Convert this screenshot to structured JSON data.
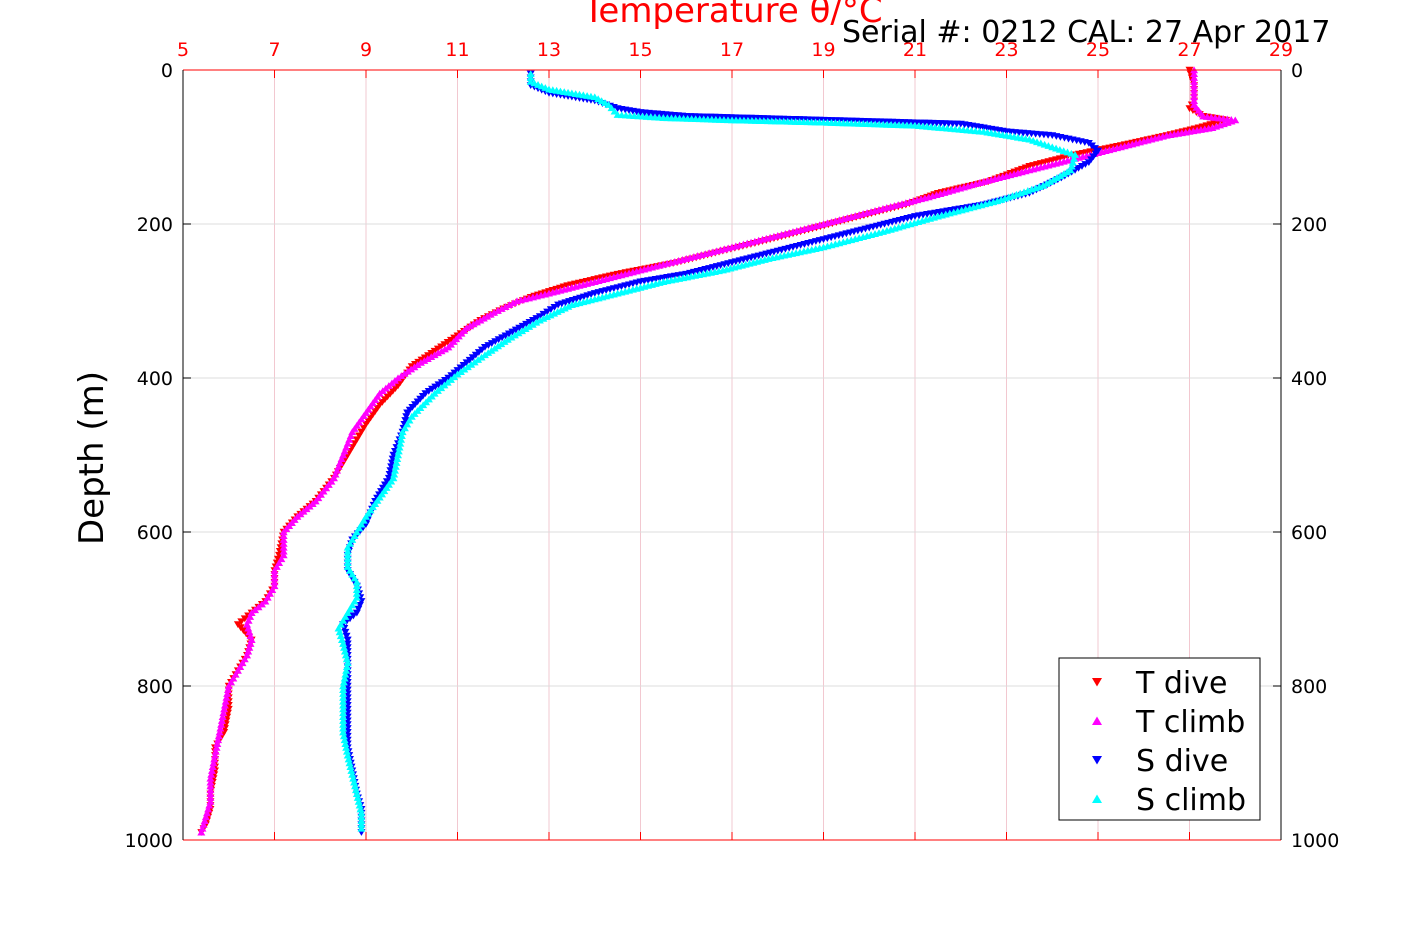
{
  "chart_data": {
    "type": "scatter",
    "title": "Temperature θ/°C",
    "subtitle": "Serial #: 0212  CAL: 27 Apr 2017",
    "xlabel": "Temperature θ/°C",
    "ylabel": "Depth (m)",
    "xlim": [
      5,
      29
    ],
    "ylim": [
      0,
      1000
    ],
    "y_reversed": true,
    "x_axis_position": "top",
    "x_ticks": [
      "5",
      "7",
      "9",
      "11",
      "13",
      "15",
      "17",
      "19",
      "21",
      "23",
      "25",
      "27",
      "29"
    ],
    "y_ticks": [
      "0",
      "200",
      "400",
      "600",
      "800",
      "1000"
    ],
    "grid": true,
    "legend_position": "bottom-right",
    "series": [
      {
        "name": "T dive",
        "color": "#ff0000",
        "marker": "triangle-down",
        "points": [
          [
            27.0,
            0
          ],
          [
            27.1,
            20
          ],
          [
            27.1,
            40
          ],
          [
            27.0,
            50
          ],
          [
            27.3,
            60
          ],
          [
            27.8,
            65
          ],
          [
            27.2,
            75
          ],
          [
            26.5,
            85
          ],
          [
            25.5,
            98
          ],
          [
            24.5,
            110
          ],
          [
            23.5,
            125
          ],
          [
            22.6,
            145
          ],
          [
            21.5,
            160
          ],
          [
            20.8,
            175
          ],
          [
            19.8,
            190
          ],
          [
            18.5,
            210
          ],
          [
            17.5,
            225
          ],
          [
            16.8,
            235
          ],
          [
            15.8,
            250
          ],
          [
            14.5,
            265
          ],
          [
            13.4,
            280
          ],
          [
            12.6,
            295
          ],
          [
            12.0,
            310
          ],
          [
            11.5,
            325
          ],
          [
            11.0,
            345
          ],
          [
            10.5,
            365
          ],
          [
            10.0,
            385
          ],
          [
            9.7,
            410
          ],
          [
            9.3,
            435
          ],
          [
            9.0,
            460
          ],
          [
            8.8,
            480
          ],
          [
            8.6,
            500
          ],
          [
            8.3,
            530
          ],
          [
            7.9,
            560
          ],
          [
            7.5,
            580
          ],
          [
            7.2,
            600
          ],
          [
            7.1,
            630
          ],
          [
            7.0,
            650
          ],
          [
            7.0,
            670
          ],
          [
            6.8,
            690
          ],
          [
            6.5,
            705
          ],
          [
            6.2,
            720
          ],
          [
            6.5,
            740
          ],
          [
            6.4,
            760
          ],
          [
            6.2,
            780
          ],
          [
            6.0,
            800
          ],
          [
            6.0,
            830
          ],
          [
            5.9,
            860
          ],
          [
            5.7,
            880
          ],
          [
            5.7,
            910
          ],
          [
            5.6,
            940
          ],
          [
            5.6,
            960
          ],
          [
            5.5,
            980
          ],
          [
            5.4,
            990
          ]
        ]
      },
      {
        "name": "T climb",
        "color": "#ff00ff",
        "marker": "triangle-up",
        "points": [
          [
            5.4,
            990
          ],
          [
            5.5,
            970
          ],
          [
            5.6,
            950
          ],
          [
            5.6,
            920
          ],
          [
            5.7,
            890
          ],
          [
            5.8,
            860
          ],
          [
            5.9,
            830
          ],
          [
            6.0,
            800
          ],
          [
            6.2,
            780
          ],
          [
            6.4,
            760
          ],
          [
            6.5,
            740
          ],
          [
            6.4,
            720
          ],
          [
            6.5,
            705
          ],
          [
            6.8,
            690
          ],
          [
            7.0,
            670
          ],
          [
            7.0,
            650
          ],
          [
            7.2,
            630
          ],
          [
            7.2,
            600
          ],
          [
            7.5,
            580
          ],
          [
            7.9,
            560
          ],
          [
            8.3,
            530
          ],
          [
            8.5,
            500
          ],
          [
            8.7,
            470
          ],
          [
            9.0,
            445
          ],
          [
            9.3,
            420
          ],
          [
            9.7,
            400
          ],
          [
            10.2,
            380
          ],
          [
            10.8,
            360
          ],
          [
            11.2,
            335
          ],
          [
            11.8,
            315
          ],
          [
            12.3,
            300
          ],
          [
            13.0,
            290
          ],
          [
            14.0,
            275
          ],
          [
            15.0,
            260
          ],
          [
            16.0,
            245
          ],
          [
            17.0,
            230
          ],
          [
            18.0,
            215
          ],
          [
            19.0,
            200
          ],
          [
            20.3,
            180
          ],
          [
            21.3,
            165
          ],
          [
            22.5,
            145
          ],
          [
            23.5,
            130
          ],
          [
            24.5,
            115
          ],
          [
            25.5,
            100
          ],
          [
            26.5,
            85
          ],
          [
            27.5,
            75
          ],
          [
            28.0,
            65
          ],
          [
            27.3,
            60
          ],
          [
            27.1,
            45
          ],
          [
            27.1,
            25
          ],
          [
            27.1,
            0
          ]
        ]
      },
      {
        "name": "S dive",
        "color": "#0000ff",
        "marker": "triangle-down",
        "points": [
          [
            12.6,
            5
          ],
          [
            12.6,
            20
          ],
          [
            13.0,
            30
          ],
          [
            14.0,
            40
          ],
          [
            14.5,
            50
          ],
          [
            15.0,
            55
          ],
          [
            16.0,
            60
          ],
          [
            19.0,
            65
          ],
          [
            22.0,
            70
          ],
          [
            23.0,
            80
          ],
          [
            24.0,
            85
          ],
          [
            24.8,
            95
          ],
          [
            25.0,
            105
          ],
          [
            24.8,
            120
          ],
          [
            24.2,
            140
          ],
          [
            23.5,
            160
          ],
          [
            22.5,
            175
          ],
          [
            21.0,
            190
          ],
          [
            20.0,
            205
          ],
          [
            19.0,
            220
          ],
          [
            18.0,
            235
          ],
          [
            17.0,
            250
          ],
          [
            16.0,
            265
          ],
          [
            15.0,
            275
          ],
          [
            14.0,
            290
          ],
          [
            13.2,
            305
          ],
          [
            12.8,
            320
          ],
          [
            12.2,
            340
          ],
          [
            11.6,
            360
          ],
          [
            11.2,
            380
          ],
          [
            10.8,
            400
          ],
          [
            10.3,
            420
          ],
          [
            9.9,
            445
          ],
          [
            9.8,
            470
          ],
          [
            9.6,
            500
          ],
          [
            9.5,
            530
          ],
          [
            9.2,
            560
          ],
          [
            9.0,
            590
          ],
          [
            8.7,
            610
          ],
          [
            8.6,
            630
          ],
          [
            8.6,
            650
          ],
          [
            8.8,
            670
          ],
          [
            8.9,
            690
          ],
          [
            8.8,
            705
          ],
          [
            8.5,
            720
          ],
          [
            8.6,
            740
          ],
          [
            8.6,
            760
          ],
          [
            8.6,
            790
          ],
          [
            8.6,
            820
          ],
          [
            8.6,
            850
          ],
          [
            8.6,
            880
          ],
          [
            8.7,
            910
          ],
          [
            8.8,
            940
          ],
          [
            8.9,
            960
          ],
          [
            8.9,
            980
          ],
          [
            8.9,
            990
          ]
        ]
      },
      {
        "name": "S climb",
        "color": "#00ffff",
        "marker": "triangle-up",
        "points": [
          [
            8.9,
            985
          ],
          [
            8.9,
            965
          ],
          [
            8.8,
            940
          ],
          [
            8.7,
            915
          ],
          [
            8.6,
            890
          ],
          [
            8.5,
            860
          ],
          [
            8.5,
            830
          ],
          [
            8.5,
            800
          ],
          [
            8.6,
            770
          ],
          [
            8.5,
            745
          ],
          [
            8.4,
            725
          ],
          [
            8.6,
            705
          ],
          [
            8.8,
            685
          ],
          [
            8.8,
            665
          ],
          [
            8.6,
            645
          ],
          [
            8.6,
            620
          ],
          [
            8.8,
            600
          ],
          [
            9.0,
            580
          ],
          [
            9.3,
            555
          ],
          [
            9.6,
            530
          ],
          [
            9.7,
            500
          ],
          [
            9.8,
            470
          ],
          [
            10.0,
            450
          ],
          [
            10.5,
            420
          ],
          [
            11.0,
            395
          ],
          [
            11.6,
            370
          ],
          [
            12.1,
            350
          ],
          [
            12.8,
            325
          ],
          [
            13.5,
            305
          ],
          [
            14.5,
            290
          ],
          [
            15.5,
            275
          ],
          [
            16.8,
            260
          ],
          [
            17.8,
            245
          ],
          [
            19.0,
            230
          ],
          [
            20.3,
            210
          ],
          [
            21.5,
            190
          ],
          [
            22.8,
            170
          ],
          [
            23.8,
            150
          ],
          [
            24.4,
            130
          ],
          [
            24.5,
            110
          ],
          [
            23.5,
            90
          ],
          [
            22.5,
            80
          ],
          [
            21.0,
            72
          ],
          [
            19.0,
            68
          ],
          [
            17.0,
            65
          ],
          [
            15.5,
            62
          ],
          [
            14.5,
            58
          ],
          [
            14.3,
            45
          ],
          [
            14.0,
            35
          ],
          [
            13.0,
            25
          ],
          [
            12.6,
            15
          ],
          [
            12.6,
            5
          ]
        ]
      }
    ]
  }
}
